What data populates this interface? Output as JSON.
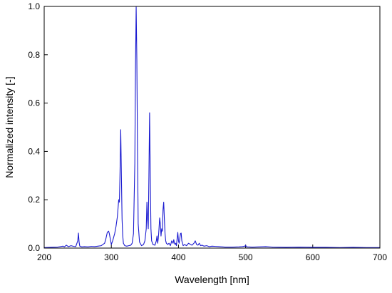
{
  "chart_data": {
    "type": "line",
    "title": "",
    "xlabel": "Wavelength [nm]",
    "ylabel": "Normalized intensity [-]",
    "xlim": [
      200,
      700
    ],
    "ylim": [
      0,
      1.0
    ],
    "x_ticks": [
      200,
      300,
      400,
      500,
      600,
      700
    ],
    "y_ticks": [
      0.0,
      0.2,
      0.4,
      0.6,
      0.8,
      1.0
    ],
    "x_tick_labels": [
      "200",
      "300",
      "400",
      "500",
      "600",
      "700"
    ],
    "y_tick_labels": [
      "0.0",
      "0.2",
      "0.4",
      "0.6",
      "0.8",
      "1.0"
    ],
    "grid": false,
    "line_color": "#1a1ad0",
    "series": [
      {
        "x": [
          200,
          210,
          220,
          228,
          230,
          233,
          236,
          240,
          244,
          247,
          250,
          251,
          252,
          253,
          256,
          260,
          265,
          270,
          275,
          280,
          285,
          290,
          292,
          294,
          296,
          297,
          298,
          300,
          302,
          305,
          307,
          309,
          311,
          312,
          313,
          314,
          315,
          316,
          317,
          318,
          320,
          323,
          326,
          329,
          331,
          333,
          335,
          336,
          337,
          338,
          339,
          340,
          342,
          345,
          348,
          350,
          352,
          353,
          354,
          355,
          356,
          357,
          358,
          359,
          360,
          362,
          365,
          367,
          368,
          369,
          370,
          371,
          372,
          373,
          374,
          375,
          376,
          377,
          378,
          379,
          380,
          381,
          382,
          384,
          386,
          388,
          390,
          391,
          392,
          393,
          394,
          395,
          396,
          397,
          398,
          399,
          400,
          401,
          402,
          403,
          404,
          405,
          406,
          407,
          409,
          412,
          415,
          418,
          420,
          423,
          425,
          427,
          429,
          431,
          433,
          435,
          438,
          442,
          446,
          450,
          455,
          460,
          465,
          470,
          480,
          490,
          495,
          499,
          500,
          501,
          503,
          510,
          520,
          530,
          540,
          560,
          580,
          600,
          620,
          640,
          660,
          680,
          700
        ],
        "y": [
          0.002,
          0.003,
          0.004,
          0.008,
          0.005,
          0.012,
          0.006,
          0.01,
          0.007,
          0.006,
          0.03,
          0.062,
          0.025,
          0.008,
          0.005,
          0.006,
          0.005,
          0.007,
          0.006,
          0.008,
          0.01,
          0.02,
          0.04,
          0.065,
          0.07,
          0.06,
          0.045,
          0.015,
          0.03,
          0.06,
          0.09,
          0.13,
          0.2,
          0.19,
          0.32,
          0.49,
          0.3,
          0.12,
          0.05,
          0.02,
          0.01,
          0.008,
          0.01,
          0.012,
          0.02,
          0.06,
          0.35,
          0.75,
          1.0,
          0.78,
          0.4,
          0.1,
          0.025,
          0.01,
          0.015,
          0.03,
          0.08,
          0.19,
          0.12,
          0.08,
          0.3,
          0.56,
          0.3,
          0.08,
          0.03,
          0.015,
          0.012,
          0.03,
          0.05,
          0.02,
          0.04,
          0.08,
          0.125,
          0.1,
          0.05,
          0.08,
          0.07,
          0.16,
          0.19,
          0.12,
          0.06,
          0.03,
          0.02,
          0.015,
          0.02,
          0.01,
          0.03,
          0.025,
          0.02,
          0.035,
          0.02,
          0.015,
          0.02,
          0.01,
          0.04,
          0.065,
          0.03,
          0.02,
          0.04,
          0.06,
          0.062,
          0.03,
          0.02,
          0.01,
          0.015,
          0.01,
          0.02,
          0.015,
          0.012,
          0.02,
          0.03,
          0.015,
          0.012,
          0.02,
          0.01,
          0.012,
          0.008,
          0.01,
          0.006,
          0.008,
          0.007,
          0.006,
          0.005,
          0.004,
          0.004,
          0.005,
          0.006,
          0.008,
          0.012,
          0.006,
          0.005,
          0.004,
          0.005,
          0.006,
          0.004,
          0.003,
          0.004,
          0.003,
          0.003,
          0.002,
          0.003,
          0.002,
          0.002
        ]
      }
    ]
  }
}
